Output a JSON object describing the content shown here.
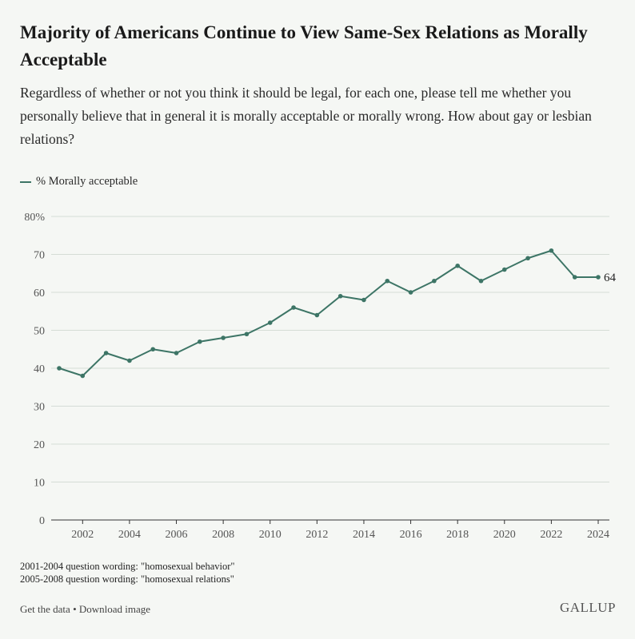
{
  "header": {
    "title": "Majority of Americans Continue to View Same-Sex Relations as Morally Acceptable",
    "subtitle": "Regardless of whether or not you think it should be legal, for each one, please tell me whether you personally believe that in general it is morally acceptable or morally wrong. How about gay or lesbian relations?"
  },
  "legend": {
    "label": "% Morally acceptable"
  },
  "notes": [
    "2001-2004 question wording: \"homosexual behavior\"",
    "2005-2008 question wording: \"homosexual relations\""
  ],
  "footer": {
    "get_data": "Get the data",
    "separator": " • ",
    "download": "Download image",
    "brand": "GALLUP"
  },
  "colors": {
    "line": "#3d7566",
    "grid": "#d5dcd6",
    "axis": "#333333"
  },
  "chart_data": {
    "type": "line",
    "title": "Majority of Americans Continue to View Same-Sex Relations as Morally Acceptable",
    "xlabel": "",
    "ylabel": "",
    "x": [
      2001,
      2002,
      2003,
      2004,
      2005,
      2006,
      2007,
      2008,
      2009,
      2010,
      2011,
      2012,
      2013,
      2014,
      2015,
      2016,
      2017,
      2018,
      2019,
      2020,
      2021,
      2022,
      2023,
      2024
    ],
    "series": [
      {
        "name": "% Morally acceptable",
        "values": [
          40,
          38,
          44,
          42,
          45,
          44,
          47,
          48,
          49,
          52,
          56,
          54,
          59,
          58,
          63,
          60,
          63,
          67,
          63,
          66,
          69,
          71,
          64,
          64
        ]
      }
    ],
    "ylim": [
      0,
      80
    ],
    "yticks": [
      0,
      10,
      20,
      30,
      40,
      50,
      60,
      70,
      80
    ],
    "ytick_labels": [
      "0",
      "10",
      "20",
      "30",
      "40",
      "50",
      "60",
      "70",
      "80%"
    ],
    "xticks": [
      2002,
      2004,
      2006,
      2008,
      2010,
      2012,
      2014,
      2016,
      2018,
      2020,
      2022,
      2024
    ],
    "end_label": "64",
    "grid": true,
    "legend_position": "top-left"
  }
}
